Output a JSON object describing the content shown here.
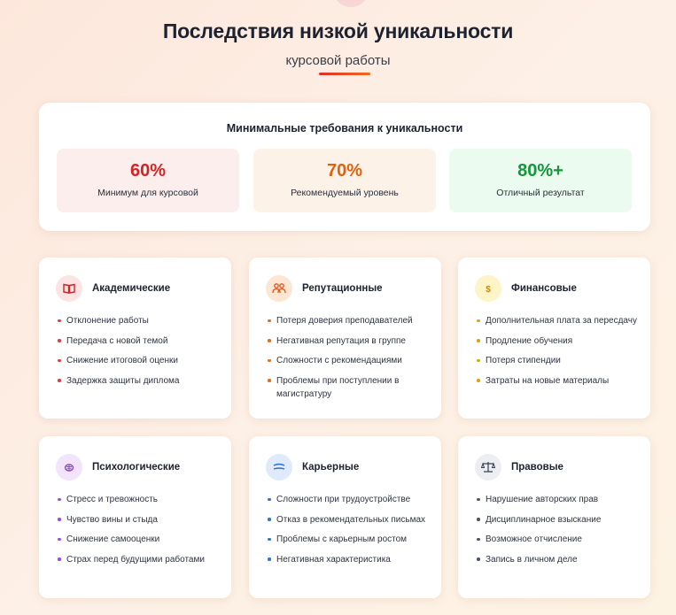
{
  "header": {
    "title": "Последствия низкой уникальности",
    "subtitle": "курсовой работы"
  },
  "requirements": {
    "title": "Минимальные требования к уникальности",
    "tiles": [
      {
        "value": "60%",
        "label": "Минимум для курсовой",
        "color": "#d42323"
      },
      {
        "value": "70%",
        "label": "Рекомендуемый уровень",
        "color": "#e0610f"
      },
      {
        "value": "80%+",
        "label": "Отличный результат",
        "color": "#14963a"
      }
    ]
  },
  "cards": [
    {
      "title": "Академические",
      "icon": "book-icon",
      "accent": "#e23b3b",
      "items": [
        "Отклонение работы",
        "Передача с новой темой",
        "Снижение итоговой оценки",
        "Задержка защиты диплома"
      ]
    },
    {
      "title": "Репутационные",
      "icon": "people-icon",
      "accent": "#ec6a1a",
      "items": [
        "Потеря доверия преподавателей",
        "Негативная репутация в группе",
        "Сложности с рекомендациями",
        "Проблемы при поступлении в магистратуру"
      ]
    },
    {
      "title": "Финансовые",
      "icon": "dollar-icon",
      "accent": "#e0a212",
      "items": [
        "Дополнительная плата за пересдачу",
        "Продление обучения",
        "Потеря стипендии",
        "Затраты на новые материалы"
      ]
    },
    {
      "title": "Психологические",
      "icon": "brain-icon",
      "accent": "#9b4ad6",
      "items": [
        "Стресс и тревожность",
        "Чувство вины и стыда",
        "Снижение самооценки",
        "Страх перед будущими работами"
      ]
    },
    {
      "title": "Карьерные",
      "icon": "briefcase-icon",
      "accent": "#2b73d9",
      "items": [
        "Сложности при трудоустройстве",
        "Отказ в рекомендательных письмах",
        "Проблемы с карьерным ростом",
        "Негативная характеристика"
      ]
    },
    {
      "title": "Правовые",
      "icon": "scales-icon",
      "accent": "#4b5563",
      "items": [
        "Нарушение авторских прав",
        "Дисциплинарное взыскание",
        "Возможное отчисление",
        "Запись в личном деле"
      ]
    }
  ]
}
